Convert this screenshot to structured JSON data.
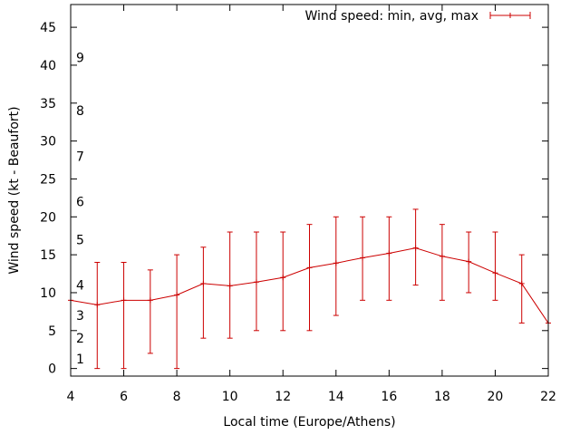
{
  "chart_data": {
    "type": "line",
    "xlabel": "Local time (Europe/Athens)",
    "ylabel": "Wind speed (kt - Beaufort)",
    "xlim": [
      4,
      22
    ],
    "ylim": [
      -1,
      48
    ],
    "xticks": [
      4,
      6,
      8,
      10,
      12,
      14,
      16,
      18,
      20,
      22
    ],
    "yticks": [
      0,
      5,
      10,
      15,
      20,
      25,
      30,
      35,
      40,
      45
    ],
    "legend": {
      "label": "Wind speed: min, avg, max",
      "placement": "top-right"
    },
    "series": [
      {
        "name": "Wind speed: min, avg, max",
        "color": "#cc0000",
        "x": [
          4,
          5,
          6,
          7,
          8,
          9,
          10,
          11,
          12,
          13,
          14,
          15,
          16,
          17,
          18,
          19,
          20,
          21,
          22
        ],
        "avg": [
          9,
          8.4,
          9,
          9,
          9.7,
          11.2,
          10.9,
          11.4,
          12,
          13.3,
          13.9,
          14.6,
          15.2,
          15.9,
          14.8,
          14.1,
          12.6,
          11.2,
          6
        ],
        "min": [
          null,
          0,
          0,
          2,
          0,
          4,
          4,
          5,
          5,
          5,
          7,
          9,
          9,
          11,
          9,
          10,
          9,
          6,
          null
        ],
        "max": [
          null,
          14,
          14,
          13,
          15,
          16,
          18,
          18,
          18,
          19,
          20,
          20,
          20,
          21,
          19,
          18,
          18,
          15,
          null
        ]
      }
    ],
    "beaufort_labels": [
      {
        "label": "1",
        "value": 1.3
      },
      {
        "label": "2",
        "value": 4
      },
      {
        "label": "3",
        "value": 7
      },
      {
        "label": "4",
        "value": 11
      },
      {
        "label": "5",
        "value": 17
      },
      {
        "label": "6",
        "value": 22
      },
      {
        "label": "7",
        "value": 28
      },
      {
        "label": "8",
        "value": 34
      },
      {
        "label": "9",
        "value": 41
      }
    ]
  }
}
